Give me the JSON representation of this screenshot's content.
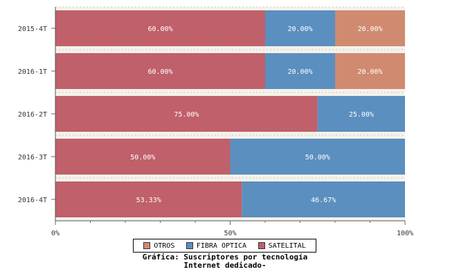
{
  "chart_data": {
    "type": "bar",
    "orientation": "horizontal",
    "stacked": true,
    "categories": [
      "2015-4T",
      "2016-1T",
      "2016-2T",
      "2016-3T",
      "2016-4T"
    ],
    "series": [
      {
        "name": "SATELITAL",
        "color": "#c0606a",
        "values": [
          60.0,
          60.0,
          75.0,
          50.0,
          53.33
        ],
        "labels": [
          "60.00%",
          "60.00%",
          "75.00%",
          "50.00%",
          "53.33%"
        ]
      },
      {
        "name": "FIBRA OPTICA",
        "color": "#5b8fc0",
        "values": [
          20.0,
          20.0,
          25.0,
          50.0,
          46.67
        ],
        "labels": [
          "20.00%",
          "20.00%",
          "25.00%",
          "50.00%",
          "46.67%"
        ]
      },
      {
        "name": "OTROS",
        "color": "#d08a70",
        "values": [
          20.0,
          20.0,
          0,
          0,
          0
        ],
        "labels": [
          "20.00%",
          "20.00%",
          "",
          "",
          ""
        ]
      }
    ],
    "xlim": [
      0,
      100
    ],
    "xticks": [
      "0%",
      "50%",
      "100%"
    ],
    "grid": true,
    "legend_position": "bottom",
    "legend_order": [
      "OTROS",
      "FIBRA OPTICA",
      "SATELITAL"
    ],
    "caption_line1": "Gráfica: Suscriptores por tecnología",
    "caption_line2": "Internet dedicado-"
  }
}
